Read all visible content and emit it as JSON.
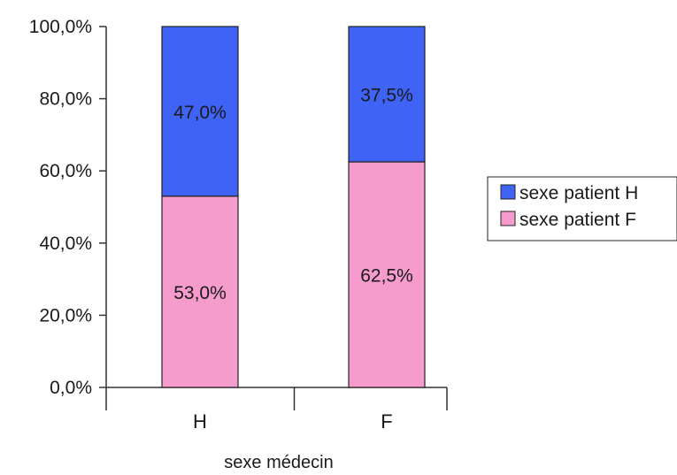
{
  "chart_data": {
    "type": "bar",
    "stacked": true,
    "categories": [
      "H",
      "F"
    ],
    "series": [
      {
        "name": "sexe patient F",
        "color": "#f59ccd",
        "values": [
          53.0,
          62.5
        ],
        "labels": [
          "53,0%",
          "62,5%"
        ]
      },
      {
        "name": "sexe patient H",
        "color": "#3f63f5",
        "values": [
          47.0,
          37.5
        ],
        "labels": [
          "47,0%",
          "37,5%"
        ]
      }
    ],
    "xlabel": "sexe médecin",
    "ylabel": "",
    "ylim": [
      0,
      100
    ],
    "yticks": [
      "0,0%",
      "20,0%",
      "40,0%",
      "60,0%",
      "80,0%",
      "100,0%"
    ],
    "legend": {
      "position": "right",
      "order": [
        "sexe patient H",
        "sexe patient F"
      ]
    },
    "grid": false
  }
}
